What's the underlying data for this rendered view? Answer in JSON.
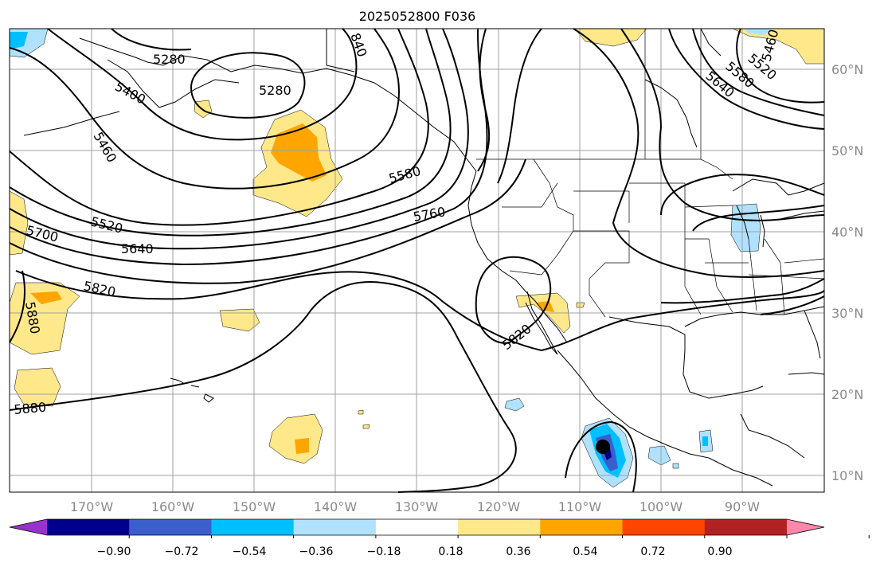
{
  "title": "2025052800 F036",
  "lon_labels": [
    "170°W",
    "160°W",
    "150°W",
    "140°W",
    "130°W",
    "120°W",
    "110°W",
    "100°W",
    "90°W"
  ],
  "lat_labels": [
    "60°N",
    "50°N",
    "40°N",
    "30°N",
    "20°N",
    "10°N"
  ],
  "colorbar": {
    "colors": [
      "#9932cc",
      "#00008b",
      "#3a5fcd",
      "#00bfff",
      "#b0e2ff",
      "#ffffff",
      "#ffe88a",
      "#ffa500",
      "#ff4500",
      "#b22222",
      "#ff88aa"
    ],
    "tick_labels": [
      "−0.90",
      "−0.72",
      "−0.54",
      "−0.36",
      "−0.18",
      "0.18",
      "0.36",
      "0.54",
      "0.72",
      "0.90"
    ]
  },
  "contour_labels": [
    "5280",
    "5280",
    "5400",
    "5460",
    "5520",
    "5640",
    "5700",
    "5820",
    "5880",
    "5880",
    "5640",
    "5580",
    "5520",
    "5460",
    "5580",
    "5760",
    "5820",
    "840"
  ],
  "hurricane_marker": "tropical-cyclone-dot"
}
